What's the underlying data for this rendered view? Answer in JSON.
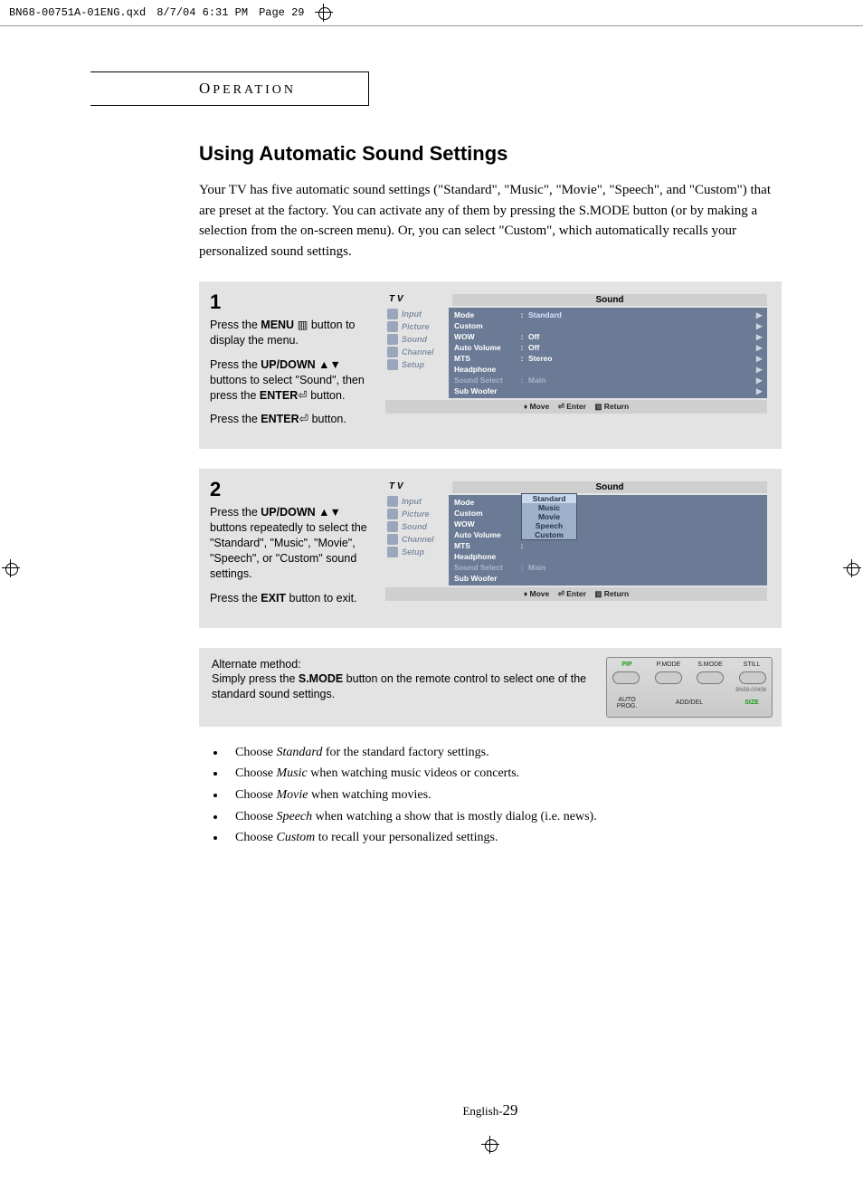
{
  "header": {
    "filename": "BN68-00751A-01ENG.qxd",
    "datetime": "8/7/04 6:31 PM",
    "pagetag": "Page 29"
  },
  "section_label_cap": "O",
  "section_label_rest": "PERATION",
  "title": "Using Automatic Sound Settings",
  "intro": "Your TV has five automatic sound settings (\"Standard\", \"Music\", \"Movie\", \"Speech\", and \"Custom\") that are preset at the factory. You can activate any of them by pressing the S.MODE button (or by making a selection from the on-screen menu). Or, you can select \"Custom\", which automatically recalls your personalized sound settings.",
  "step1": {
    "num": "1",
    "p1a": "Press the ",
    "p1b": "MENU",
    "p1c": " ▥ button to display the menu.",
    "p2a": "Press the ",
    "p2b": "UP/DOWN",
    "p2c": " ▲▼ buttons to select \"Sound\", then press the ",
    "p2d": "ENTER",
    "p2e": "⏎ button.",
    "p3a": "Press the ",
    "p3b": "ENTER",
    "p3c": "⏎ button."
  },
  "step2": {
    "num": "2",
    "p1a": "Press the ",
    "p1b": "UP/DOWN",
    "p1c": " ▲▼ buttons repeatedly to select the \"Standard\", \"Music\", \"Movie\", \"Speech\", or \"Custom\" sound settings.",
    "p2a": "Press the ",
    "p2b": "EXIT",
    "p2c": " button to exit."
  },
  "osd": {
    "tv": "T V",
    "header": "Sound",
    "side": [
      "Input",
      "Picture",
      "Sound",
      "Channel",
      "Setup"
    ],
    "rows1": [
      {
        "k": "Mode",
        "c": ":",
        "v": "Standard",
        "arr": "▶",
        "sel": true
      },
      {
        "k": "Custom",
        "c": "",
        "v": "",
        "arr": "▶"
      },
      {
        "k": "WOW",
        "c": ":",
        "v": "Off",
        "arr": "▶"
      },
      {
        "k": "Auto Volume",
        "c": ":",
        "v": "Off",
        "arr": "▶"
      },
      {
        "k": "MTS",
        "c": ":",
        "v": "Stereo",
        "arr": "▶"
      },
      {
        "k": "Headphone",
        "c": "",
        "v": "",
        "arr": "▶"
      },
      {
        "k": "Sound Select",
        "c": ":",
        "v": "Main",
        "arr": "▶",
        "dim": true
      },
      {
        "k": "Sub Woofer",
        "c": "",
        "v": "",
        "arr": "▶"
      }
    ],
    "rows2": [
      {
        "k": "Mode",
        "c": ":",
        "v": ""
      },
      {
        "k": "Custom",
        "c": "",
        "v": ""
      },
      {
        "k": "WOW",
        "c": ":",
        "v": ""
      },
      {
        "k": "Auto Volume",
        "c": ":",
        "v": ""
      },
      {
        "k": "MTS",
        "c": ":",
        "v": ""
      },
      {
        "k": "Headphone",
        "c": "",
        "v": ""
      },
      {
        "k": "Sound Select",
        "c": ":",
        "v": "Main",
        "dim": true
      },
      {
        "k": "Sub Woofer",
        "c": "",
        "v": ""
      }
    ],
    "popup": [
      "Standard",
      "Music",
      "Movie",
      "Speech",
      "Custom"
    ],
    "popup_selected": 0,
    "foot_move": "♦ Move",
    "foot_enter": "⏎ Enter",
    "foot_return": "▥ Return"
  },
  "alt": {
    "heading": "Alternate method:",
    "text1": "Simply press the ",
    "text_b": "S.MODE",
    "text2": " button on the remote control to select one of the standard sound settings."
  },
  "remote": {
    "row1": [
      "PIP",
      "P.MODE",
      "S.MODE",
      "STILL"
    ],
    "row2": [
      "AUTO PROG.",
      "ADD/DEL",
      "SIZE"
    ],
    "model": "BN59-00408"
  },
  "bullets": [
    {
      "a": "Choose ",
      "i": "Standard",
      "b": " for the standard factory settings."
    },
    {
      "a": "Choose ",
      "i": "Music",
      "b": " when watching music videos or concerts."
    },
    {
      "a": "Choose ",
      "i": "Movie",
      "b": " when watching movies."
    },
    {
      "a": "Choose ",
      "i": "Speech",
      "b": " when watching a show that is mostly dialog (i.e. news)."
    },
    {
      "a": "Choose ",
      "i": "Custom",
      "b": " to recall your personalized settings."
    }
  ],
  "footer": {
    "prefix": "English-",
    "page": "29"
  },
  "colors": {
    "box_bg": "#e3e3e3",
    "osd_main": "#6b7a95",
    "osd_side": "#7b8aa0"
  }
}
